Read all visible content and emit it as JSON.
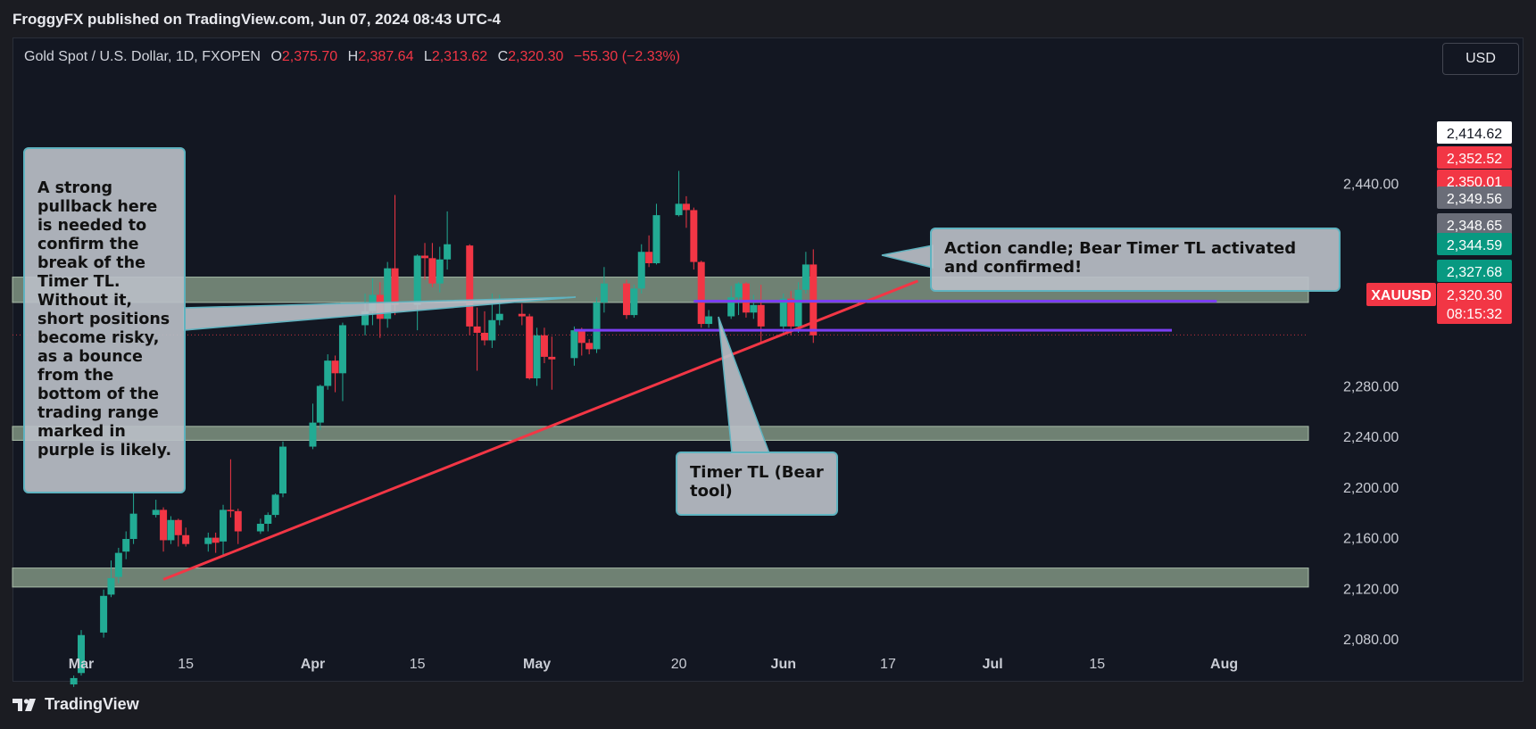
{
  "header": {
    "published": "FroggyFX published on TradingView.com, Jun 07, 2024 08:43 UTC-4"
  },
  "symbol": {
    "name": "Gold Spot / U.S. Dollar, 1D, FXOPEN",
    "o_label": "O",
    "o": "2,375.70",
    "h_label": "H",
    "h": "2,387.64",
    "l_label": "L",
    "l": "2,313.62",
    "c_label": "C",
    "c": "2,320.30",
    "change": "−55.30 (−2.33%)"
  },
  "currency": "USD",
  "footer": {
    "brand": "TradingView"
  },
  "colors": {
    "up": "#22ab94",
    "down": "#f23645",
    "zone": "#8fa68f",
    "trendline": "#f23645",
    "range": "#7b3ff2",
    "annotation_border": "#5fb3c0"
  },
  "annotations": {
    "left_note": "A strong pullback here is needed to confirm the break of the Timer TL. Without it, short positions become risky, as a bounce from the bottom of the trading range marked in purple is likely.",
    "action_note": "Action candle; Bear Timer TL activated and confirmed!",
    "timer_note": "Timer TL (Bear tool)"
  },
  "chart_data": {
    "type": "candlestick",
    "symbol": "XAUUSD",
    "interval": "1D",
    "ylim": [
      2070,
      2450
    ],
    "y_ticks": [
      2080,
      2120,
      2160,
      2200,
      2240,
      2280,
      2440
    ],
    "y_tick_labels": [
      "2,080.00",
      "2,120.00",
      "2,160.00",
      "2,200.00",
      "2,240.00",
      "2,280.00",
      "2,440.00"
    ],
    "x_ticks": [
      {
        "label": "Mar",
        "date": "2024-03-01"
      },
      {
        "label": "15",
        "date": "2024-03-15"
      },
      {
        "label": "Apr",
        "date": "2024-04-01"
      },
      {
        "label": "15",
        "date": "2024-04-15"
      },
      {
        "label": "May",
        "date": "2024-05-01"
      },
      {
        "label": "20",
        "date": "2024-05-20"
      },
      {
        "label": "Jun",
        "date": "2024-06-03"
      },
      {
        "label": "17",
        "date": "2024-06-17"
      },
      {
        "label": "Jul",
        "date": "2024-07-01"
      },
      {
        "label": "15",
        "date": "2024-07-15"
      },
      {
        "label": "Aug",
        "date": "2024-08-01"
      }
    ],
    "price_labels": [
      {
        "text": "2,414.62",
        "value": 2414.62,
        "style": "white"
      },
      {
        "text": "2,352.52",
        "value": 2352.52,
        "style": "red"
      },
      {
        "text": "2,350.01",
        "value": 2350.01,
        "style": "red"
      },
      {
        "text": "2,349.56",
        "value": 2349.56,
        "style": "gray"
      },
      {
        "text": "2,348.65",
        "value": 2348.65,
        "style": "gray"
      },
      {
        "text": "2,344.59",
        "value": 2344.59,
        "style": "green"
      },
      {
        "text": "2,327.68",
        "value": 2327.68,
        "style": "green"
      },
      {
        "text": "2,320.30",
        "value": 2320.3,
        "style": "red"
      },
      {
        "text": "08:15:32",
        "value": 2320.3,
        "style": "red"
      }
    ],
    "zones": [
      [
        2346,
        2366
      ],
      [
        2237,
        2248
      ],
      [
        2121,
        2136
      ]
    ],
    "trendline": [
      {
        "date": "2024-03-12",
        "price": 2127
      },
      {
        "date": "2024-06-21",
        "price": 2363
      }
    ],
    "range_lines": [
      {
        "price": 2347,
        "from": "2024-05-22",
        "to": "2024-07-31"
      },
      {
        "price": 2324,
        "from": "2024-05-06",
        "to": "2024-07-25"
      }
    ],
    "candles": [
      [
        "2024-02-29",
        2044,
        2051,
        2042,
        2049
      ],
      [
        "2024-03-01",
        2053,
        2087,
        2051,
        2083
      ],
      [
        "2024-03-04",
        2085,
        2119,
        2081,
        2114
      ],
      [
        "2024-03-05",
        2115,
        2142,
        2113,
        2128
      ],
      [
        "2024-03-06",
        2129,
        2152,
        2124,
        2148
      ],
      [
        "2024-03-07",
        2149,
        2165,
        2143,
        2159
      ],
      [
        "2024-03-08",
        2159,
        2195,
        2155,
        2179
      ],
      [
        "2024-03-11",
        2178,
        2190,
        2176,
        2182
      ],
      [
        "2024-03-12",
        2182,
        2184,
        2149,
        2158
      ],
      [
        "2024-03-13",
        2158,
        2177,
        2155,
        2174
      ],
      [
        "2024-03-14",
        2174,
        2175,
        2153,
        2162
      ],
      [
        "2024-03-15",
        2162,
        2168,
        2153,
        2155
      ],
      [
        "2024-03-18",
        2155,
        2164,
        2149,
        2160
      ],
      [
        "2024-03-19",
        2160,
        2164,
        2148,
        2156
      ],
      [
        "2024-03-20",
        2157,
        2186,
        2146,
        2182
      ],
      [
        "2024-03-21",
        2182,
        2222,
        2176,
        2181
      ],
      [
        "2024-03-22",
        2181,
        2183,
        2155,
        2165
      ],
      [
        "2024-03-25",
        2165,
        2175,
        2163,
        2171
      ],
      [
        "2024-03-26",
        2171,
        2180,
        2165,
        2178
      ],
      [
        "2024-03-27",
        2178,
        2195,
        2176,
        2194
      ],
      [
        "2024-03-28",
        2195,
        2236,
        2192,
        2232
      ],
      [
        "2024-04-01",
        2232,
        2266,
        2230,
        2251
      ],
      [
        "2024-04-02",
        2251,
        2281,
        2245,
        2280
      ],
      [
        "2024-04-03",
        2280,
        2305,
        2277,
        2300
      ],
      [
        "2024-04-04",
        2300,
        2304,
        2275,
        2290
      ],
      [
        "2024-04-05",
        2290,
        2330,
        2268,
        2328
      ],
      [
        "2024-04-08",
        2328,
        2353,
        2320,
        2339
      ],
      [
        "2024-04-09",
        2339,
        2365,
        2328,
        2352
      ],
      [
        "2024-04-10",
        2352,
        2362,
        2318,
        2333
      ],
      [
        "2024-04-11",
        2333,
        2378,
        2326,
        2373
      ],
      [
        "2024-04-12",
        2373,
        2431,
        2336,
        2344
      ],
      [
        "2024-04-15",
        2344,
        2384,
        2324,
        2383
      ],
      [
        "2024-04-16",
        2383,
        2393,
        2364,
        2381
      ],
      [
        "2024-04-17",
        2381,
        2393,
        2358,
        2361
      ],
      [
        "2024-04-18",
        2361,
        2390,
        2354,
        2380
      ],
      [
        "2024-04-19",
        2380,
        2418,
        2372,
        2392
      ],
      [
        "2024-04-22",
        2391,
        2392,
        2320,
        2327
      ],
      [
        "2024-04-23",
        2327,
        2342,
        2292,
        2322
      ],
      [
        "2024-04-24",
        2322,
        2339,
        2312,
        2316
      ],
      [
        "2024-04-25",
        2316,
        2353,
        2310,
        2332
      ],
      [
        "2024-04-26",
        2332,
        2352,
        2328,
        2337
      ],
      [
        "2024-04-29",
        2337,
        2345,
        2328,
        2335
      ],
      [
        "2024-04-30",
        2335,
        2337,
        2285,
        2286
      ],
      [
        "2024-05-01",
        2286,
        2326,
        2280,
        2320
      ],
      [
        "2024-05-02",
        2320,
        2326,
        2298,
        2303
      ],
      [
        "2024-05-03",
        2303,
        2319,
        2277,
        2301
      ],
      [
        "2024-05-06",
        2302,
        2327,
        2296,
        2324
      ],
      [
        "2024-05-07",
        2324,
        2326,
        2304,
        2314
      ],
      [
        "2024-05-08",
        2314,
        2317,
        2305,
        2309
      ],
      [
        "2024-05-09",
        2309,
        2350,
        2306,
        2346
      ],
      [
        "2024-05-10",
        2346,
        2374,
        2338,
        2361
      ],
      [
        "2024-05-13",
        2361,
        2364,
        2333,
        2336
      ],
      [
        "2024-05-14",
        2336,
        2360,
        2334,
        2357
      ],
      [
        "2024-05-15",
        2357,
        2392,
        2353,
        2386
      ],
      [
        "2024-05-16",
        2386,
        2399,
        2374,
        2377
      ],
      [
        "2024-05-17",
        2377,
        2424,
        2376,
        2415
      ],
      [
        "2024-05-20",
        2415,
        2450,
        2414,
        2424
      ],
      [
        "2024-05-21",
        2424,
        2430,
        2405,
        2419
      ],
      [
        "2024-05-22",
        2419,
        2421,
        2372,
        2378
      ],
      [
        "2024-05-23",
        2378,
        2379,
        2326,
        2329
      ],
      [
        "2024-05-24",
        2329,
        2340,
        2326,
        2335
      ],
      [
        "2024-05-27",
        2335,
        2359,
        2333,
        2350
      ],
      [
        "2024-05-28",
        2350,
        2362,
        2336,
        2361
      ],
      [
        "2024-05-29",
        2361,
        2362,
        2334,
        2338
      ],
      [
        "2024-05-30",
        2338,
        2352,
        2333,
        2344
      ],
      [
        "2024-05-31",
        2344,
        2360,
        2314,
        2327
      ],
      [
        "2024-06-03",
        2327,
        2353,
        2322,
        2349
      ],
      [
        "2024-06-04",
        2349,
        2355,
        2320,
        2327
      ],
      [
        "2024-06-05",
        2327,
        2362,
        2322,
        2356
      ],
      [
        "2024-06-06",
        2356,
        2386,
        2353,
        2376
      ],
      [
        "2024-06-07",
        2376,
        2388,
        2314,
        2320
      ]
    ]
  }
}
